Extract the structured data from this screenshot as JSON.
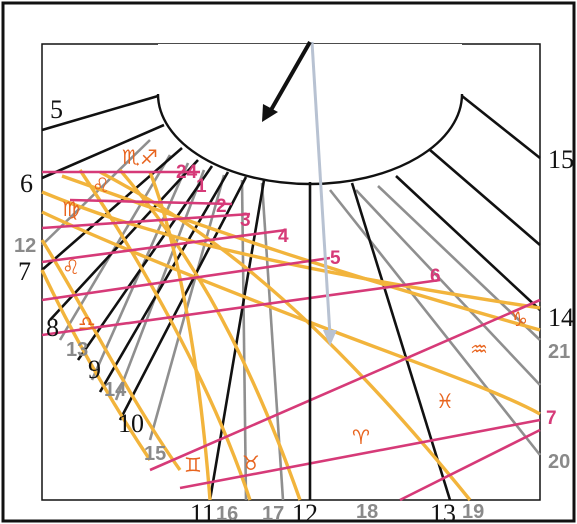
{
  "colors": {
    "frame": "#111111",
    "hour_line_black": "#111111",
    "hour_line_grey": "#8f8f8f",
    "date_curve": "#f2b43c",
    "declination_line": "#d63a78",
    "sun_pointer": "#b8c2d2",
    "zodiac_sign": "#e8641e"
  },
  "hour_labels_black": [
    {
      "id": "5",
      "text": "5"
    },
    {
      "id": "6",
      "text": "6"
    },
    {
      "id": "7",
      "text": "7"
    },
    {
      "id": "8",
      "text": "8"
    },
    {
      "id": "9",
      "text": "9"
    },
    {
      "id": "10",
      "text": "10"
    },
    {
      "id": "11",
      "text": "11"
    },
    {
      "id": "12",
      "text": "12"
    },
    {
      "id": "13",
      "text": "13"
    },
    {
      "id": "14",
      "text": "14"
    },
    {
      "id": "15",
      "text": "15"
    }
  ],
  "hour_labels_grey": [
    {
      "id": "12",
      "text": "12"
    },
    {
      "id": "13",
      "text": "13"
    },
    {
      "id": "14",
      "text": "14"
    },
    {
      "id": "15",
      "text": "15"
    },
    {
      "id": "16",
      "text": "16"
    },
    {
      "id": "17",
      "text": "17"
    },
    {
      "id": "18",
      "text": "18"
    },
    {
      "id": "19",
      "text": "19"
    },
    {
      "id": "20",
      "text": "20"
    },
    {
      "id": "21",
      "text": "21"
    }
  ],
  "pink_labels": [
    {
      "id": "24",
      "text": "24"
    },
    {
      "id": "1",
      "text": "1"
    },
    {
      "id": "2",
      "text": "2"
    },
    {
      "id": "3",
      "text": "3"
    },
    {
      "id": "4",
      "text": "4"
    },
    {
      "id": "5",
      "text": "5"
    },
    {
      "id": "6",
      "text": "6"
    },
    {
      "id": "7",
      "text": "7"
    }
  ],
  "zodiac_signs": [
    {
      "id": "scorpio-sagittarius",
      "text": "♏♐"
    },
    {
      "id": "leo-top",
      "text": "♌"
    },
    {
      "id": "virgo",
      "text": "♍"
    },
    {
      "id": "leo",
      "text": "♌"
    },
    {
      "id": "libra",
      "text": "♎"
    },
    {
      "id": "gemini",
      "text": "♊"
    },
    {
      "id": "taurus",
      "text": "♉"
    },
    {
      "id": "aries",
      "text": "♈"
    },
    {
      "id": "capricorn",
      "text": "♑"
    },
    {
      "id": "aquarius",
      "text": "♒"
    },
    {
      "id": "pisces",
      "text": "♓"
    }
  ]
}
